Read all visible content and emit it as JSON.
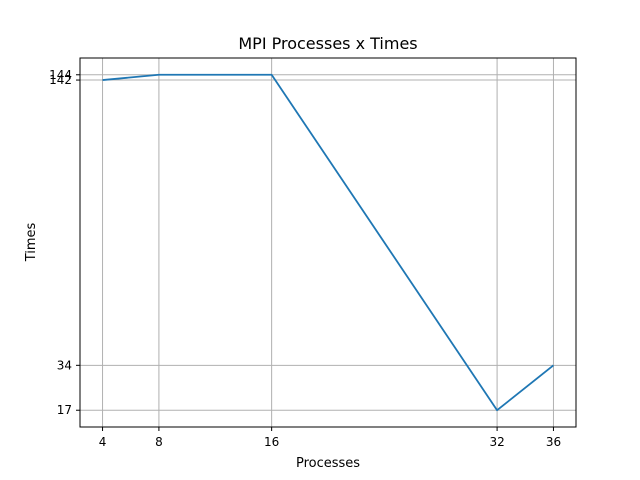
{
  "chart_data": {
    "type": "line",
    "title": "MPI Processes x Times",
    "xlabel": "Processes",
    "ylabel": "Times",
    "grid": true,
    "x": [
      4,
      8,
      16,
      32,
      36
    ],
    "series": [
      {
        "values": [
          142,
          144,
          144,
          17,
          34
        ],
        "color": "#1f77b4"
      }
    ],
    "xticks": [
      4,
      8,
      16,
      32,
      36
    ],
    "yticks": [
      17,
      34,
      142,
      144
    ],
    "xlim": [
      2.4,
      37.6
    ],
    "ylim": [
      10.65,
      150.35
    ]
  }
}
